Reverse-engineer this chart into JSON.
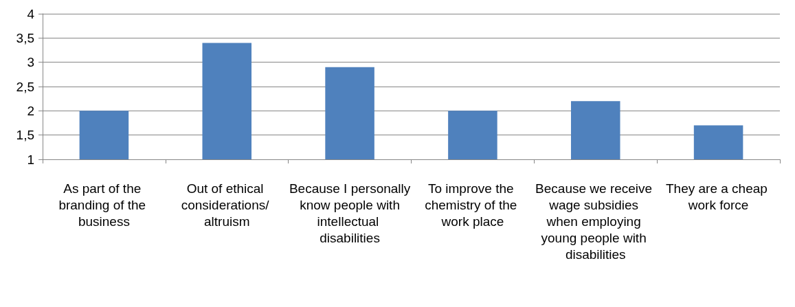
{
  "chart_data": {
    "type": "bar",
    "categories": [
      "As part of the branding of the business",
      "Out of ethical considerations/ altruism",
      "Because I personally know people with intellectual disabilities",
      "To improve the chemistry of the work place",
      "Because we receive wage subsidies when employing young people with disabilities",
      "They are a cheap work force"
    ],
    "values": [
      2,
      3.4,
      2.9,
      2,
      2.2,
      1.7
    ],
    "color": "#4f81bd",
    "ylim": [
      1,
      4
    ],
    "yticks": [
      1,
      {
        "value": 1.5,
        "label": "1,5"
      },
      2,
      {
        "value": 2.5,
        "label": "2,5"
      },
      3,
      {
        "value": 3.5,
        "label": "3,5"
      },
      4
    ],
    "grid": "y"
  }
}
